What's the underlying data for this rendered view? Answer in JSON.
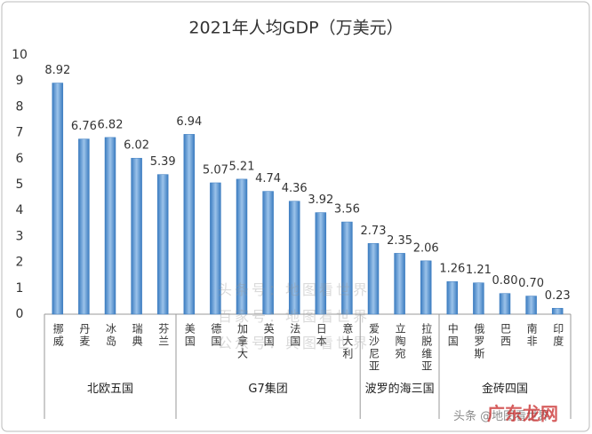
{
  "chart_data": {
    "type": "bar",
    "title": "2021年人均GDP（万美元）",
    "categories": [
      "挪威",
      "丹麦",
      "冰岛",
      "瑞典",
      "芬兰",
      "美国",
      "德国",
      "加拿大",
      "英国",
      "法国",
      "日本",
      "意大利",
      "爱沙尼亚",
      "立陶宛",
      "拉脱维亚",
      "中国",
      "俄罗斯",
      "巴西",
      "南非",
      "印度"
    ],
    "values": [
      8.92,
      6.76,
      6.82,
      6.02,
      5.39,
      6.94,
      5.07,
      5.21,
      4.74,
      4.36,
      3.92,
      3.56,
      2.73,
      2.35,
      2.06,
      1.26,
      1.21,
      0.8,
      0.7,
      0.23
    ],
    "value_labels": [
      "8.92",
      "6.76",
      "6.82",
      "6.02",
      "5.39",
      "6.94",
      "5.07",
      "5.21",
      "4.74",
      "4.36",
      "3.92",
      "3.56",
      "2.73",
      "2.35",
      "2.06",
      "1.26",
      "1.21",
      "0.80",
      "0.70",
      "0.23"
    ],
    "groups": [
      {
        "label": "北欧五国",
        "start": 0,
        "end": 4
      },
      {
        "label": "G7集团",
        "start": 5,
        "end": 11
      },
      {
        "label": "波罗的海三国",
        "start": 12,
        "end": 14
      },
      {
        "label": "金砖四国",
        "start": 15,
        "end": 19
      }
    ],
    "color": "#3b7cc0",
    "ylim": [
      0,
      10
    ],
    "yticks": [
      0,
      1,
      2,
      3,
      4,
      5,
      6,
      7,
      8,
      9,
      10
    ],
    "grid": false,
    "watermarks": [
      "头条号：地图看世界",
      "百家号：地图看世界",
      "公众号：舆图看世界",
      "头条 @地图看世界",
      "广东龙网"
    ]
  }
}
